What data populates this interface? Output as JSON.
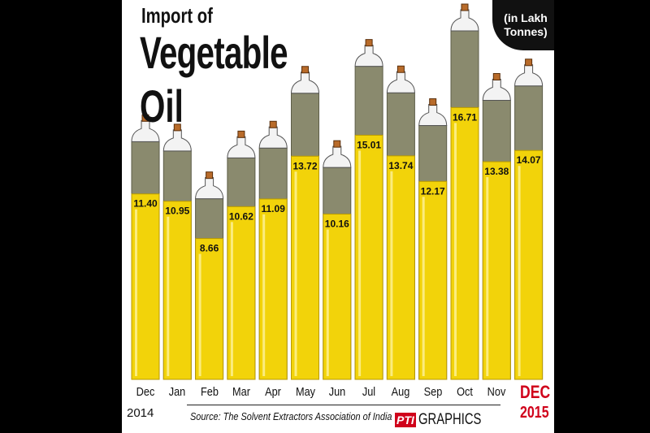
{
  "title": {
    "line1": "Import of",
    "line2": "Vegetable",
    "line3": "Oil"
  },
  "unit": "(in Lakh Tonnes)",
  "source": "Source: The Solvent Extractors Association of India",
  "credit": {
    "logo": "PTI",
    "text": "GRAPHICS"
  },
  "year_start": "2014",
  "year_end": "2015",
  "last_month_label": "DEC",
  "colors": {
    "oil": "#f2d30a",
    "top": "#8a8a6e",
    "highlight": "#d0021b"
  },
  "chart_data": {
    "type": "bar",
    "title": "Import of Vegetable Oil",
    "ylabel": "in Lakh Tonnes",
    "categories": [
      "Dec",
      "Jan",
      "Feb",
      "Mar",
      "Apr",
      "May",
      "Jun",
      "Jul",
      "Aug",
      "Sep",
      "Oct",
      "Nov",
      "DEC"
    ],
    "values": [
      11.4,
      10.95,
      8.66,
      10.62,
      11.09,
      13.72,
      10.16,
      15.01,
      13.74,
      12.17,
      16.71,
      13.38,
      14.07
    ],
    "value_labels": [
      "11.40",
      "10.95",
      "8.66",
      "10.62",
      "11.09",
      "13.72",
      "10.16",
      "15.01",
      "13.74",
      "12.17",
      "16.71",
      "13.38",
      "14.07"
    ]
  }
}
